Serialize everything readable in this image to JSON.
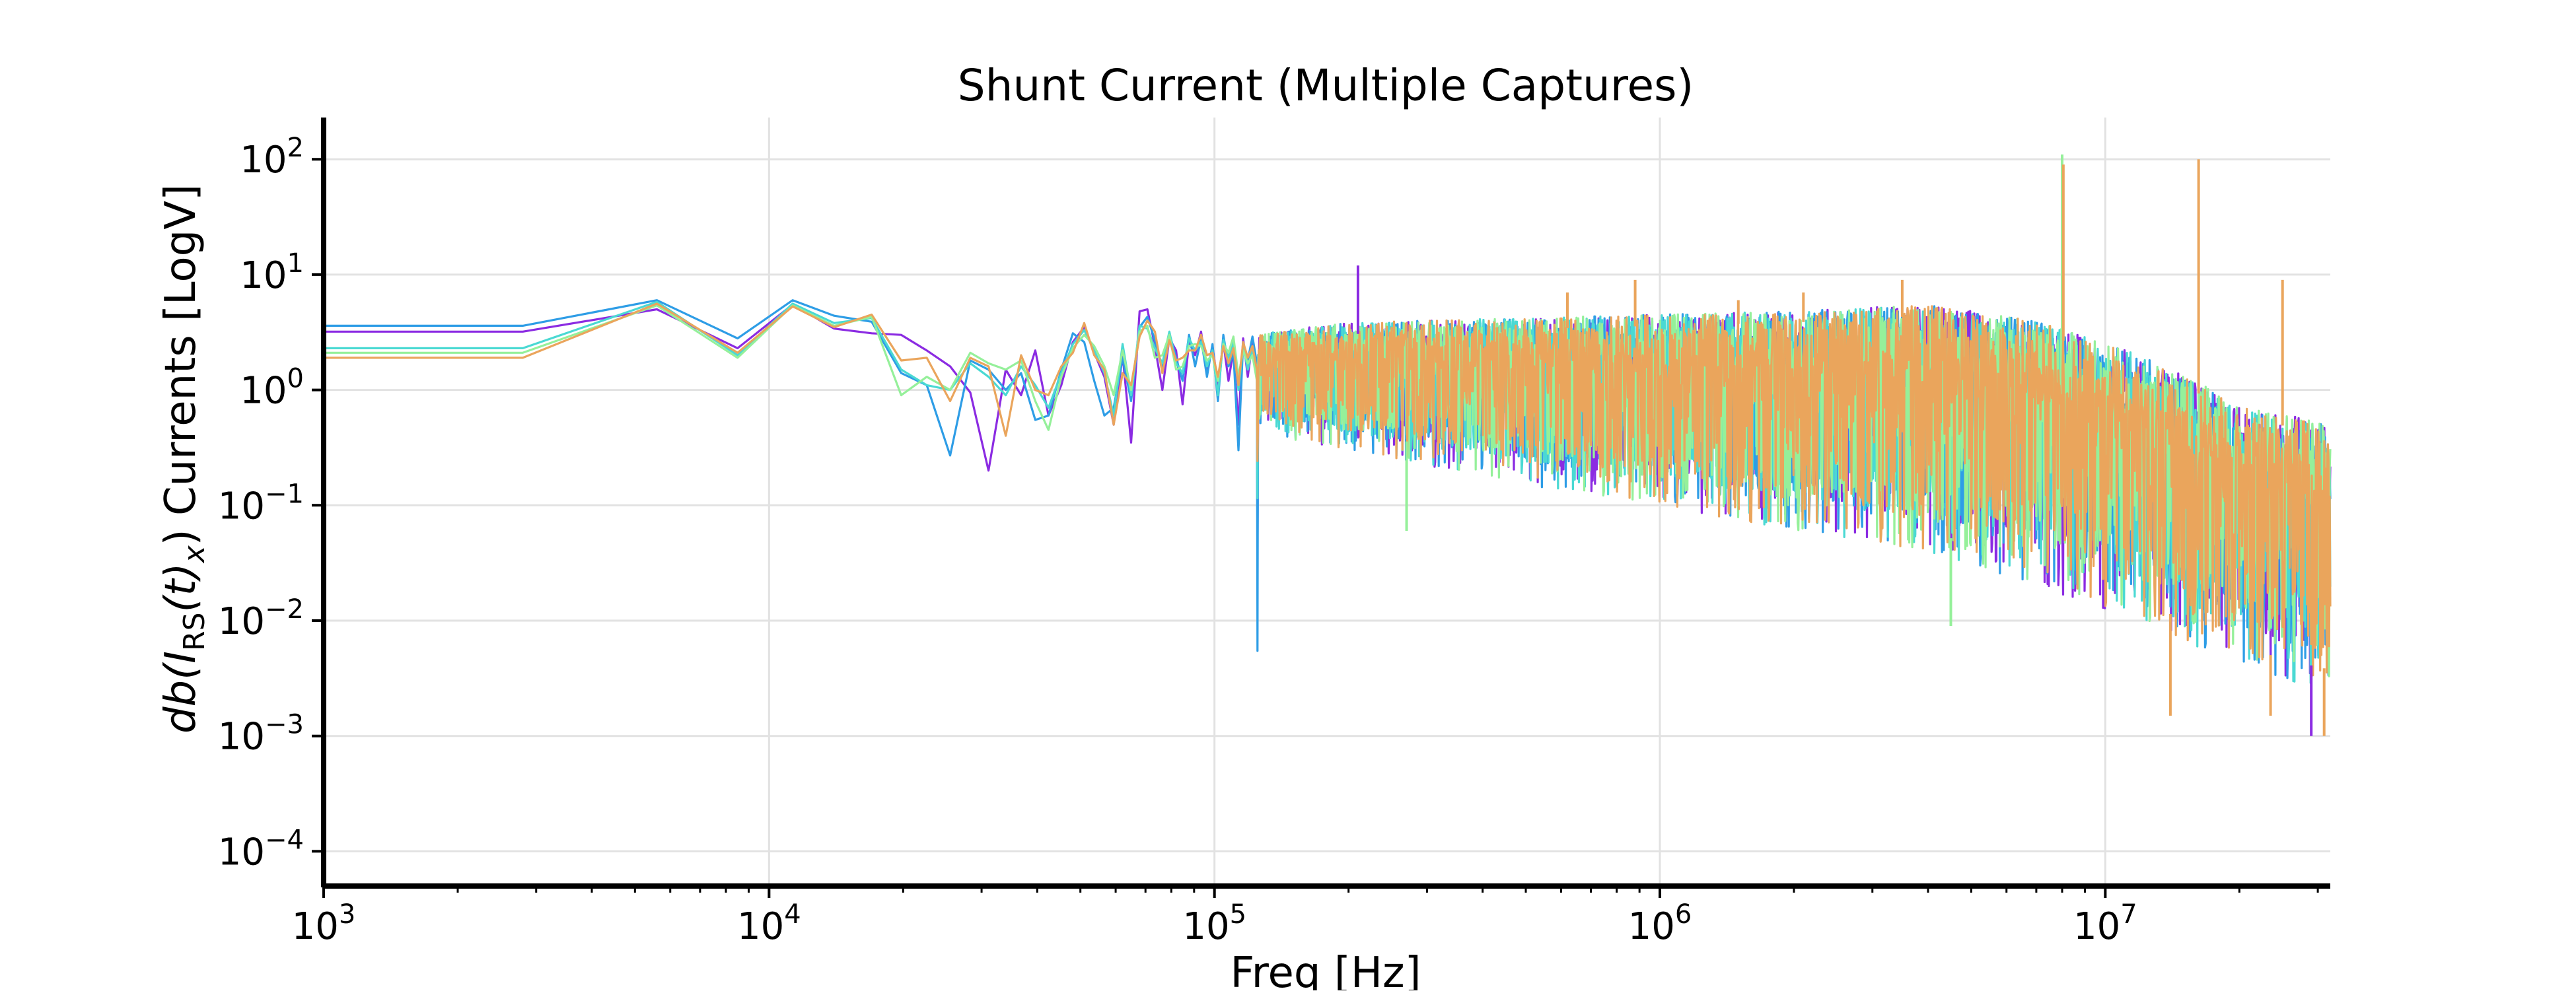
{
  "chart_data": {
    "type": "line",
    "title": "Shunt Current (Multiple Captures)",
    "xlabel": "Freq [Hz]",
    "ylabel_parts": {
      "prefix": "db(I",
      "subscript": "RS",
      "middle": "(t)",
      "subscript2": "x",
      "suffix": ") Currents [LogV]"
    },
    "x_scale": "log",
    "y_scale": "log",
    "xlim": [
      1000,
      32000000
    ],
    "ylim": [
      5e-05,
      230
    ],
    "grid": true,
    "x_ticks": [
      {
        "value": 1000,
        "base": "10",
        "exp": "3"
      },
      {
        "value": 10000,
        "base": "10",
        "exp": "4"
      },
      {
        "value": 100000,
        "base": "10",
        "exp": "5"
      },
      {
        "value": 1000000,
        "base": "10",
        "exp": "6"
      },
      {
        "value": 10000000,
        "base": "10",
        "exp": "7"
      }
    ],
    "y_ticks": [
      {
        "value": 100,
        "base": "10",
        "exp": "2"
      },
      {
        "value": 10,
        "base": "10",
        "exp": "1"
      },
      {
        "value": 1,
        "base": "10",
        "exp": "0"
      },
      {
        "value": 0.1,
        "base": "10",
        "exp": "−1"
      },
      {
        "value": 0.01,
        "base": "10",
        "exp": "−2"
      },
      {
        "value": 0.001,
        "base": "10",
        "exp": "−3"
      },
      {
        "value": 0.0001,
        "base": "10",
        "exp": "−4"
      }
    ],
    "series": [
      {
        "color": "#8b2be2",
        "x": [
          1000,
          2800,
          5600,
          8500,
          11300,
          14000,
          17000,
          19800,
          22600,
          25500,
          28300,
          31100,
          34000,
          36800,
          39600,
          42400,
          45300,
          48100,
          51000,
          53700,
          56600,
          59400,
          62200,
          65000,
          67900,
          70700,
          73500,
          76400,
          79200,
          82000,
          84800,
          87700,
          90500,
          93300,
          96200,
          99000,
          101800,
          104700,
          107500,
          110300,
          113200,
          116000,
          118800,
          121700,
          124500
        ],
        "y": [
          3.2,
          3.2,
          5.0,
          2.3,
          5.5,
          3.4,
          3.1,
          3.0,
          2.2,
          1.6,
          0.95,
          0.2,
          1.5,
          0.9,
          2.2,
          0.6,
          1.1,
          2.6,
          3.5,
          2.1,
          1.3,
          0.5,
          2.0,
          0.35,
          4.8,
          5.0,
          2.4,
          1.0,
          2.8,
          2.2,
          0.75,
          2.6,
          2.0,
          3.2,
          1.4,
          2.4,
          1.1,
          2.6,
          1.2,
          2.2,
          0.5,
          2.8,
          1.3,
          2.6,
          1.6
        ]
      },
      {
        "color": "#2e9de6",
        "x": [
          1000,
          2800,
          5600,
          8500,
          11300,
          14000,
          17000,
          19800,
          22600,
          25500,
          28300,
          31100,
          34000,
          36800,
          39600,
          42400,
          45300,
          48100,
          51000,
          53700,
          56600,
          59400,
          62200,
          65000,
          67900,
          70700,
          73500,
          76400,
          79200,
          82000,
          84800,
          87700,
          90500,
          93300,
          96200,
          99000,
          101800,
          104700,
          107500,
          110300,
          113200,
          116000,
          118800,
          121700,
          124500
        ],
        "y": [
          3.6,
          3.6,
          6.0,
          2.8,
          6.0,
          4.4,
          3.9,
          1.4,
          1.1,
          0.27,
          1.8,
          1.5,
          1.0,
          1.4,
          0.55,
          0.6,
          1.5,
          3.1,
          2.6,
          1.2,
          0.6,
          0.7,
          1.9,
          0.8,
          3.5,
          4.3,
          2.7,
          1.5,
          3.1,
          1.9,
          1.2,
          3.0,
          1.6,
          2.8,
          1.3,
          2.5,
          0.8,
          3.0,
          1.6,
          2.1,
          0.3,
          2.6,
          1.8,
          2.9,
          1.7
        ]
      },
      {
        "color": "#4ad9d3",
        "x": [
          1000,
          2800,
          5600,
          8500,
          11300,
          14000,
          17000,
          19800,
          22600,
          25500,
          28300,
          31100,
          34000,
          36800,
          39600,
          42400,
          45300,
          48100,
          51000,
          53700,
          56600,
          59400,
          62200,
          65000,
          67900,
          70700,
          73500,
          76400,
          79200,
          82000,
          84800,
          87700,
          90500,
          93300,
          96200,
          99000,
          101800,
          104700,
          107500,
          110300,
          113200,
          116000,
          118800,
          121700,
          124500
        ],
        "y": [
          2.3,
          2.3,
          5.8,
          2.0,
          5.6,
          3.8,
          4.2,
          1.5,
          1.1,
          1.0,
          1.7,
          1.3,
          0.9,
          1.6,
          1.1,
          0.7,
          1.4,
          2.5,
          3.3,
          2.2,
          1.4,
          0.6,
          2.5,
          0.9,
          3.6,
          3.4,
          2.3,
          1.7,
          3.2,
          1.7,
          1.4,
          2.8,
          2.2,
          2.6,
          1.6,
          2.2,
          0.9,
          2.7,
          1.9,
          2.6,
          1.0,
          2.4,
          1.5,
          2.3,
          1.4
        ]
      },
      {
        "color": "#95f09a",
        "x": [
          1000,
          2800,
          5600,
          8500,
          11300,
          14000,
          17000,
          19800,
          22600,
          25500,
          28300,
          31100,
          34000,
          36800,
          39600,
          42400,
          45300,
          48100,
          51000,
          53700,
          56600,
          59400,
          62200,
          65000,
          67900,
          70700,
          73500,
          76400,
          79200,
          82000,
          84800,
          87700,
          90500,
          93300,
          96200,
          99000,
          101800,
          104700,
          107500,
          110300,
          113200,
          116000,
          118800,
          121700,
          124500
        ],
        "y": [
          2.1,
          2.1,
          5.4,
          1.9,
          5.4,
          3.6,
          4.3,
          0.9,
          1.3,
          1.0,
          2.1,
          1.7,
          1.5,
          1.8,
          0.8,
          0.45,
          1.3,
          2.3,
          3.0,
          2.4,
          1.6,
          0.9,
          2.2,
          1.0,
          3.2,
          3.6,
          1.9,
          2.0,
          3.0,
          1.5,
          1.6,
          2.4,
          2.5,
          2.4,
          1.8,
          2.0,
          1.2,
          2.5,
          2.1,
          2.9,
          1.3,
          2.2,
          1.7,
          2.0,
          1.2
        ]
      },
      {
        "color": "#eaa55c",
        "x": [
          1000,
          2800,
          5600,
          8500,
          11300,
          14000,
          17000,
          19800,
          22600,
          25500,
          28300,
          31100,
          34000,
          36800,
          39600,
          42400,
          45300,
          48100,
          51000,
          53700,
          56600,
          59400,
          62200,
          65000,
          67900,
          70700,
          73500,
          76400,
          79200,
          82000,
          84800,
          87700,
          90500,
          93300,
          96200,
          99000,
          101800,
          104700,
          107500,
          110300,
          113200,
          116000,
          118800,
          121700,
          124500
        ],
        "y": [
          1.9,
          1.9,
          5.6,
          2.1,
          5.3,
          3.5,
          4.5,
          1.8,
          1.9,
          0.8,
          1.9,
          1.6,
          0.4,
          2.0,
          1.0,
          0.9,
          1.6,
          2.1,
          3.8,
          2.0,
          1.5,
          0.5,
          1.4,
          1.1,
          2.9,
          4.0,
          3.2,
          1.4,
          2.7,
          1.8,
          1.9,
          2.2,
          2.2,
          3.0,
          2.0,
          2.1,
          1.3,
          2.4,
          1.7,
          2.3,
          1.1,
          2.6,
          1.9,
          2.4,
          1.5
        ]
      }
    ],
    "dense_band": [
      {
        "x": 125000,
        "upper": 3.0,
        "lower": 0.45
      },
      {
        "x": 160000,
        "upper": 3.5,
        "lower": 0.35
      },
      {
        "x": 200000,
        "upper": 3.8,
        "lower": 0.3
      },
      {
        "x": 300000,
        "upper": 4.0,
        "lower": 0.22
      },
      {
        "x": 500000,
        "upper": 4.2,
        "lower": 0.15
      },
      {
        "x": 1000000,
        "upper": 4.5,
        "lower": 0.1
      },
      {
        "x": 2000000,
        "upper": 4.8,
        "lower": 0.06
      },
      {
        "x": 4000000,
        "upper": 5.5,
        "lower": 0.04
      },
      {
        "x": 7000000,
        "upper": 4.0,
        "lower": 0.02
      },
      {
        "x": 12000000,
        "upper": 2.0,
        "lower": 0.01
      },
      {
        "x": 16000000,
        "upper": 1.2,
        "lower": 0.006
      },
      {
        "x": 20000000,
        "upper": 0.7,
        "lower": 0.004
      },
      {
        "x": 26000000,
        "upper": 0.6,
        "lower": 0.003
      },
      {
        "x": 32000000,
        "upper": 0.5,
        "lower": 0.0025
      }
    ],
    "peaks": [
      {
        "x": 210000,
        "y": 12,
        "color": "#8b2be2"
      },
      {
        "x": 620000,
        "y": 7,
        "color": "#eaa55c"
      },
      {
        "x": 880000,
        "y": 9,
        "color": "#eaa55c"
      },
      {
        "x": 1500000,
        "y": 6,
        "color": "#eaa55c"
      },
      {
        "x": 2100000,
        "y": 7,
        "color": "#eaa55c"
      },
      {
        "x": 3500000,
        "y": 9,
        "color": "#eaa55c"
      },
      {
        "x": 8000000,
        "y": 110,
        "color": "#95f09a"
      },
      {
        "x": 8050000,
        "y": 90,
        "color": "#eaa55c"
      },
      {
        "x": 16200000,
        "y": 100,
        "color": "#eaa55c"
      },
      {
        "x": 25000000,
        "y": 9,
        "color": "#eaa55c"
      }
    ],
    "dips": [
      {
        "x": 270000,
        "y": 0.06,
        "color": "#95f09a"
      },
      {
        "x": 4500000,
        "y": 0.009,
        "color": "#95f09a"
      },
      {
        "x": 14000000,
        "y": 0.0015,
        "color": "#eaa55c"
      },
      {
        "x": 23500000,
        "y": 0.0015,
        "color": "#eaa55c"
      },
      {
        "x": 29000000,
        "y": 0.001,
        "color": "#8b2be2"
      },
      {
        "x": 31000000,
        "y": 0.001,
        "color": "#eaa55c"
      }
    ]
  }
}
